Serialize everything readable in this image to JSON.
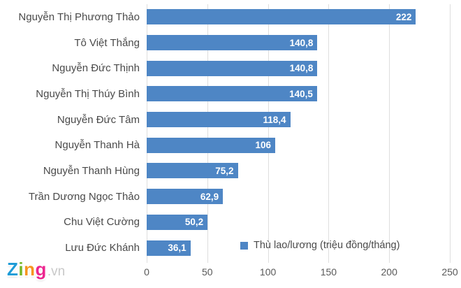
{
  "chart_data": {
    "type": "bar",
    "orientation": "horizontal",
    "title": "",
    "xlabel": "",
    "ylabel": "",
    "categories": [
      "Nguyễn Thị Phương Thảo",
      "Tô Việt Thắng",
      "Nguyễn Đức Thịnh",
      "Nguyễn Thị Thúy Bình",
      "Nguyễn Đức Tâm",
      "Nguyễn Thanh Hà",
      "Nguyễn Thanh Hùng",
      "Trần Dương Ngọc Thảo",
      "Chu Việt Cường",
      "Lưu Đức Khánh"
    ],
    "values": [
      222,
      140.8,
      140.8,
      140.5,
      118.4,
      106,
      75.2,
      62.9,
      50.2,
      36.1
    ],
    "value_labels": [
      "222",
      "140,8",
      "140,8",
      "140,5",
      "118,4",
      "106",
      "75,2",
      "62,9",
      "50,2",
      "36,1"
    ],
    "legend": "Thù lao/lương (triệu đồng/tháng)",
    "legend_position": "bottom-center",
    "grid": true,
    "xlim": [
      0,
      250
    ],
    "xticks": [
      "0",
      "50",
      "100",
      "150",
      "200",
      "250"
    ],
    "bar_color": "#4e86c5",
    "gridline_color": "#dedede",
    "value_label_color": "#ffffff"
  },
  "watermark": {
    "letters": [
      {
        "char": "Z",
        "color": "#1e9cd7"
      },
      {
        "char": "i",
        "color": "#76b82a"
      },
      {
        "char": "n",
        "color": "#f7941e"
      },
      {
        "char": "g",
        "color": "#ec268f"
      }
    ],
    "suffix": ".vn",
    "suffix_color": "#c9c9c9"
  }
}
